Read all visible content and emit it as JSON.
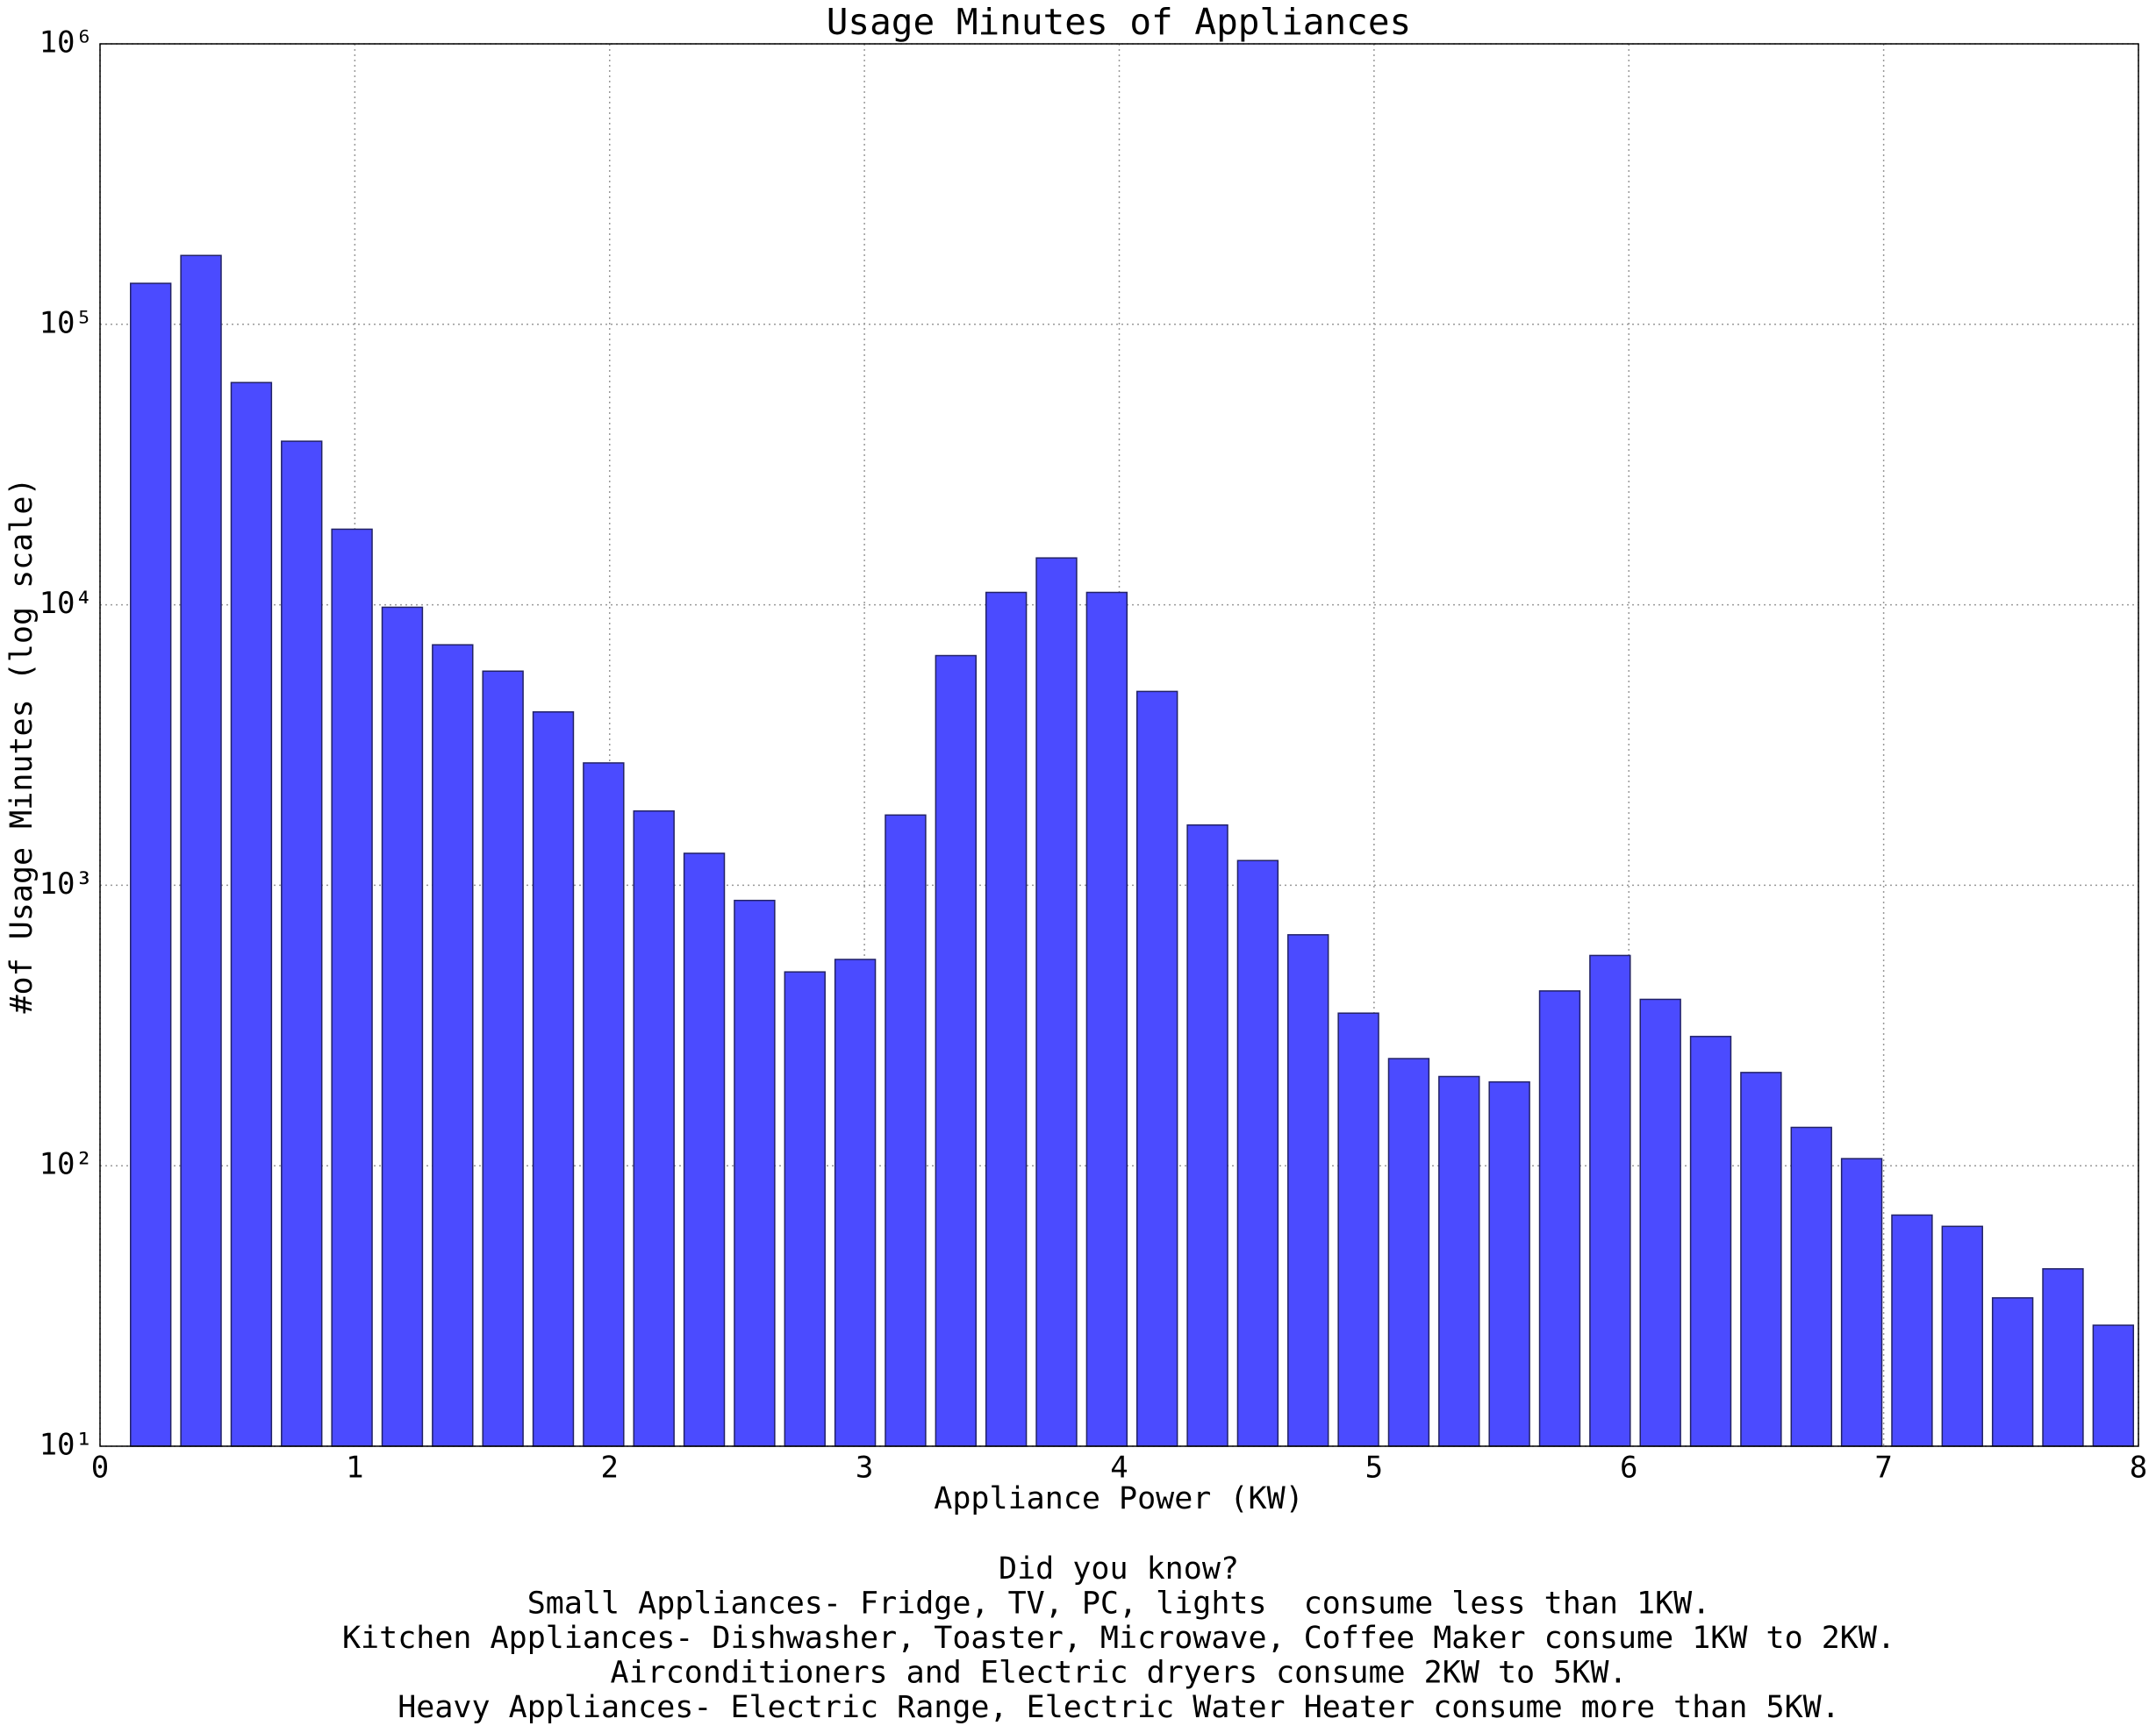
{
  "chart_data": {
    "type": "histogram",
    "title": "Usage Minutes of Appliances",
    "xlabel": "Appliance Power (KW)",
    "ylabel": "#of Usage Minutes (log scale)",
    "annotation": [
      "Did you know?",
      "Small Appliances- Fridge, TV, PC, lights  consume less than 1KW.",
      "Kitchen Appliances- Dishwasher, Toaster, Microwave, Coffee Maker consume 1KW to 2KW.",
      "Airconditioners and Electric dryers consume 2KW to 5KW.",
      "Heavy Appliances- Electric Range, Electric Water Heater consume more than 5KW."
    ],
    "bins": [
      0.1,
      0.2975,
      0.495,
      0.6925,
      0.89,
      1.0875,
      1.285,
      1.4825,
      1.68,
      1.8775,
      2.075,
      2.2725,
      2.47,
      2.6675,
      2.865,
      3.0625,
      3.26,
      3.4575,
      3.655,
      3.8525,
      4.05,
      4.2475,
      4.445,
      4.6425,
      4.84,
      5.0375,
      5.235,
      5.4325,
      5.63,
      5.8275,
      6.025,
      6.2225,
      6.42,
      6.6175,
      6.815,
      7.0125,
      7.21,
      7.4075,
      7.605,
      7.8025,
      8.0
    ],
    "values": [
      140000,
      176000,
      62000,
      38300,
      18600,
      9800,
      7200,
      5800,
      4150,
      2730,
      1840,
      1300,
      883,
      491,
      544,
      1780,
      6590,
      11070,
      14690,
      11070,
      4910,
      1640,
      1225,
      666,
      350,
      241,
      208,
      199,
      420,
      562,
      392,
      289,
      215,
      137,
      106,
      66.7,
      60.8,
      33.8,
      42.9,
      27
    ],
    "rwidth": 0.8,
    "color": "#4b4bff",
    "edgecolor": "#222266",
    "xlim": [
      0,
      8
    ],
    "xticks": [
      0,
      1,
      2,
      3,
      4,
      5,
      6,
      7,
      8
    ],
    "ylim": [
      10,
      1000000
    ],
    "yscale": "log",
    "yticks": [
      {
        "value": 10,
        "label": "10¹"
      },
      {
        "value": 100,
        "label": "10²"
      },
      {
        "value": 1000,
        "label": "10³"
      },
      {
        "value": 10000,
        "label": "10⁴"
      },
      {
        "value": 100000,
        "label": "10⁵"
      },
      {
        "value": 1000000,
        "label": "10⁶"
      }
    ],
    "grid": true
  }
}
